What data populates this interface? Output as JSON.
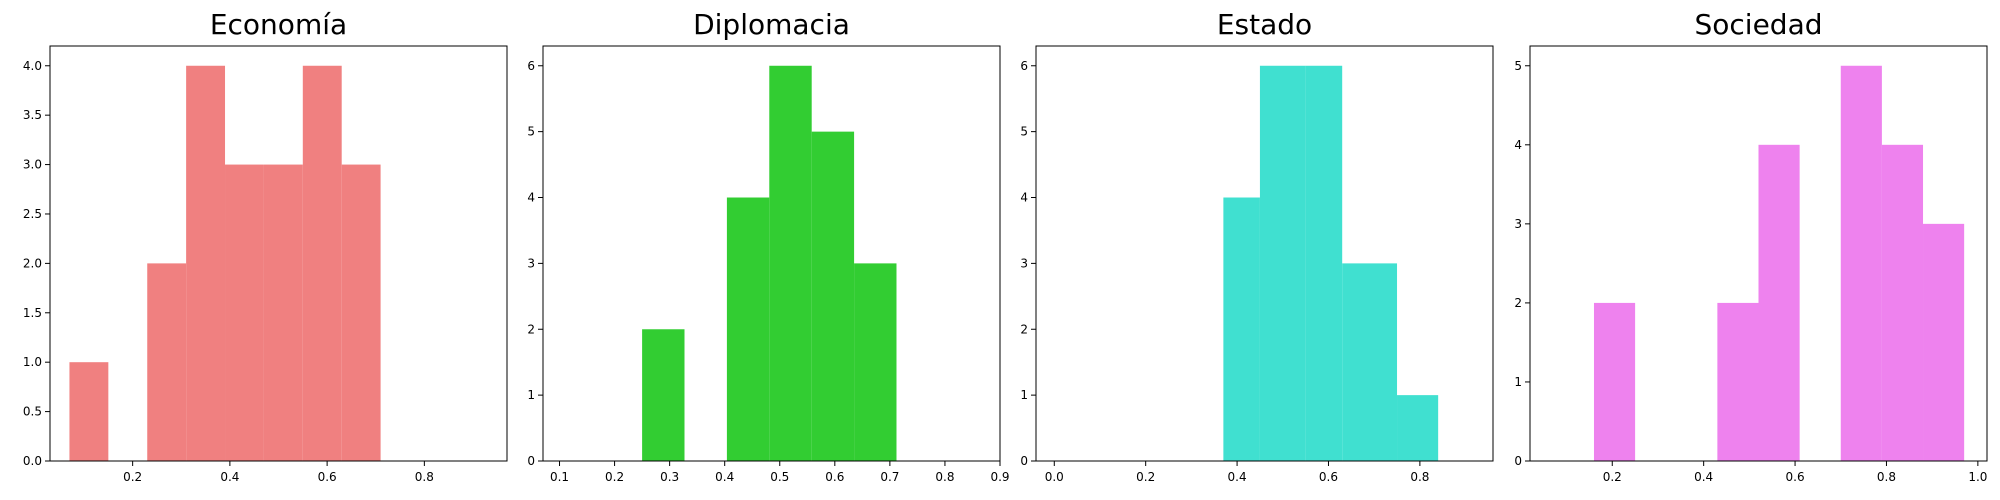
{
  "chart_data": [
    {
      "type": "bar",
      "title": "Economía",
      "color": "#f08080",
      "xlim": [
        0.03,
        0.97
      ],
      "ylim": [
        0,
        4.2
      ],
      "xticks": [
        0.2,
        0.4,
        0.6,
        0.8
      ],
      "xtick_labels": [
        "0.2",
        "0.4",
        "0.6",
        "0.8"
      ],
      "yticks": [
        0,
        0.5,
        1,
        1.5,
        2,
        2.5,
        3,
        3.5,
        4
      ],
      "ytick_labels": [
        "0.0",
        "0.5",
        "1.0",
        "1.5",
        "2.0",
        "2.5",
        "3.0",
        "3.5",
        "4.0"
      ],
      "bin_edges": [
        0.07,
        0.15,
        0.23,
        0.31,
        0.39,
        0.47,
        0.55,
        0.63,
        0.71,
        0.79
      ],
      "counts": [
        1,
        0,
        2,
        4,
        3,
        3,
        4,
        3,
        0
      ]
    },
    {
      "type": "bar",
      "title": "Diplomacia",
      "color": "#32cd32",
      "xlim": [
        0.07,
        0.9
      ],
      "ylim": [
        0,
        6.3
      ],
      "xticks": [
        0.1,
        0.2,
        0.3,
        0.4,
        0.5,
        0.6,
        0.7,
        0.8,
        0.9
      ],
      "xtick_labels": [
        "0.1",
        "0.2",
        "0.3",
        "0.4",
        "0.5",
        "0.6",
        "0.7",
        "0.8",
        "0.9"
      ],
      "yticks": [
        0,
        1,
        2,
        3,
        4,
        5,
        6
      ],
      "ytick_labels": [
        "0",
        "1",
        "2",
        "3",
        "4",
        "5",
        "6"
      ],
      "bin_edges": [
        0.25,
        0.327,
        0.404,
        0.481,
        0.558,
        0.635,
        0.712
      ],
      "counts": [
        2,
        0,
        4,
        6,
        5,
        3
      ]
    },
    {
      "type": "bar",
      "title": "Estado",
      "color": "#40e0d0",
      "xlim": [
        -0.04,
        0.96
      ],
      "ylim": [
        0,
        6.3
      ],
      "xticks": [
        0,
        0.2,
        0.4,
        0.6,
        0.8
      ],
      "xtick_labels": [
        "0.0",
        "0.2",
        "0.4",
        "0.6",
        "0.8"
      ],
      "yticks": [
        0,
        1,
        2,
        3,
        4,
        5,
        6
      ],
      "ytick_labels": [
        "0",
        "1",
        "2",
        "3",
        "4",
        "5",
        "6"
      ],
      "bin_edges": [
        0.37,
        0.45,
        0.55,
        0.63,
        0.75,
        0.84
      ],
      "counts": [
        4,
        6,
        6,
        3,
        1
      ]
    },
    {
      "type": "bar",
      "title": "Sociedad",
      "color": "#ee82ee",
      "xlim": [
        0.02,
        1.02
      ],
      "ylim": [
        0,
        5.25
      ],
      "xticks": [
        0.2,
        0.4,
        0.6,
        0.8,
        1.0
      ],
      "xtick_labels": [
        "0.2",
        "0.4",
        "0.6",
        "0.8",
        "1.0"
      ],
      "yticks": [
        0,
        1,
        2,
        3,
        4,
        5
      ],
      "ytick_labels": [
        "0",
        "1",
        "2",
        "3",
        "4",
        "5"
      ],
      "bin_edges": [
        0.16,
        0.25,
        0.34,
        0.43,
        0.52,
        0.61,
        0.7,
        0.79,
        0.88,
        0.97
      ],
      "counts": [
        2,
        0,
        0,
        2,
        4,
        0,
        5,
        4,
        3
      ]
    }
  ]
}
